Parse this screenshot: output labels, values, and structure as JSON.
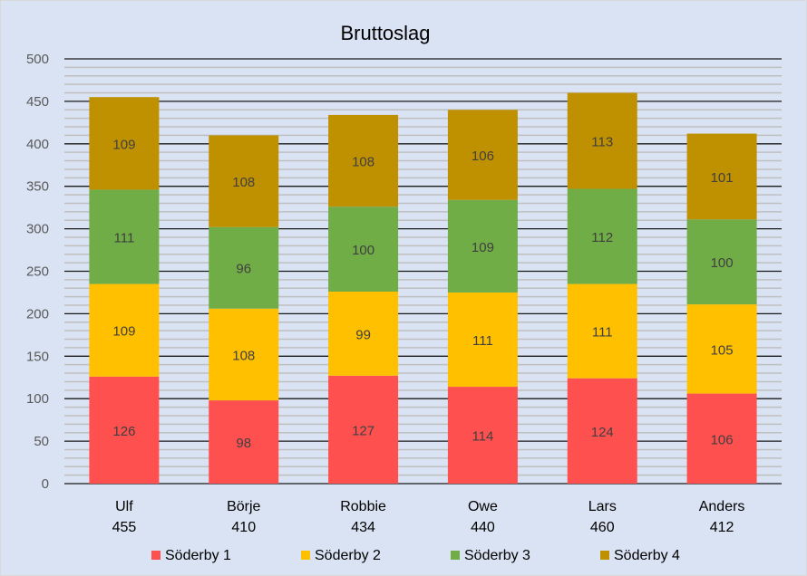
{
  "chart_data": {
    "type": "bar",
    "stacked": true,
    "title": "Bruttoslag",
    "xlabel": "",
    "ylabel": "",
    "ylim": [
      0,
      500
    ],
    "ytick_step": 50,
    "minor_step": 10,
    "yticks": [
      "0",
      "50",
      "100",
      "150",
      "200",
      "250",
      "300",
      "350",
      "400",
      "450",
      "500"
    ],
    "grid": true,
    "legend_position": "bottom",
    "categories": [
      "Ulf",
      "Börje",
      "Robbie",
      "Owe",
      "Lars",
      "Anders"
    ],
    "category_totals": [
      "455",
      "410",
      "434",
      "440",
      "460",
      "412"
    ],
    "series": [
      {
        "name": "Söderby 1",
        "color": "#ff5050",
        "values": [
          126,
          98,
          127,
          114,
          124,
          106
        ]
      },
      {
        "name": "Söderby 2",
        "color": "#ffc000",
        "values": [
          109,
          108,
          99,
          111,
          111,
          105
        ]
      },
      {
        "name": "Söderby 3",
        "color": "#70ad47",
        "values": [
          111,
          96,
          100,
          109,
          112,
          100
        ]
      },
      {
        "name": "Söderby 4",
        "color": "#bf9000",
        "values": [
          109,
          108,
          108,
          106,
          113,
          101
        ]
      }
    ]
  }
}
